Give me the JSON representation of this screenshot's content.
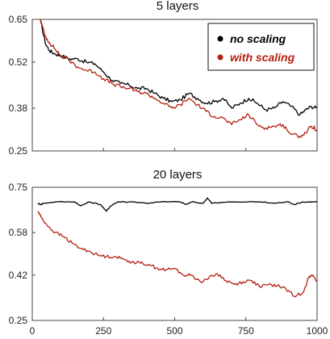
{
  "colors": {
    "no_scaling": "#000000",
    "with_scaling": "#b41f0e"
  },
  "x_tick_labels": [
    "0",
    "250",
    "500",
    "750",
    "1000"
  ],
  "chart_data": [
    {
      "type": "line",
      "title": "5 layers",
      "xlabel": "",
      "ylabel": "",
      "xlim": [
        0,
        1000
      ],
      "ylim": [
        0.25,
        0.65
      ],
      "yticks": [
        0.25,
        0.38,
        0.52,
        0.65
      ],
      "ytick_labels": [
        "0.25",
        "0.38",
        "0.52",
        "0.65"
      ],
      "xticks": [
        0,
        250,
        500,
        750,
        1000
      ],
      "grid": false,
      "legend": {
        "placement": "top-right",
        "entries": [
          "no scaling",
          "with scaling"
        ]
      },
      "series": [
        {
          "name": "no scaling",
          "color": "#000000",
          "points": [
            [
              28,
              0.65
            ],
            [
              45,
              0.58
            ],
            [
              60,
              0.555
            ],
            [
              80,
              0.545
            ],
            [
              100,
              0.54
            ],
            [
              130,
              0.53
            ],
            [
              160,
              0.53
            ],
            [
              190,
              0.52
            ],
            [
              220,
              0.515
            ],
            [
              250,
              0.49
            ],
            [
              280,
              0.465
            ],
            [
              310,
              0.455
            ],
            [
              340,
              0.45
            ],
            [
              370,
              0.44
            ],
            [
              400,
              0.44
            ],
            [
              430,
              0.425
            ],
            [
              460,
              0.41
            ],
            [
              490,
              0.4
            ],
            [
              520,
              0.405
            ],
            [
              550,
              0.425
            ],
            [
              580,
              0.41
            ],
            [
              610,
              0.395
            ],
            [
              640,
              0.4
            ],
            [
              670,
              0.41
            ],
            [
              700,
              0.38
            ],
            [
              730,
              0.395
            ],
            [
              760,
              0.41
            ],
            [
              790,
              0.395
            ],
            [
              820,
              0.375
            ],
            [
              850,
              0.38
            ],
            [
              880,
              0.4
            ],
            [
              910,
              0.385
            ],
            [
              940,
              0.36
            ],
            [
              960,
              0.375
            ],
            [
              980,
              0.385
            ],
            [
              1000,
              0.38
            ]
          ]
        },
        {
          "name": "with scaling",
          "color": "#b41f0e",
          "points": [
            [
              28,
              0.65
            ],
            [
              45,
              0.6
            ],
            [
              60,
              0.58
            ],
            [
              80,
              0.56
            ],
            [
              100,
              0.54
            ],
            [
              130,
              0.525
            ],
            [
              160,
              0.505
            ],
            [
              190,
              0.495
            ],
            [
              220,
              0.49
            ],
            [
              250,
              0.47
            ],
            [
              280,
              0.455
            ],
            [
              310,
              0.445
            ],
            [
              340,
              0.44
            ],
            [
              370,
              0.43
            ],
            [
              400,
              0.425
            ],
            [
              430,
              0.41
            ],
            [
              460,
              0.395
            ],
            [
              490,
              0.38
            ],
            [
              520,
              0.39
            ],
            [
              550,
              0.41
            ],
            [
              580,
              0.39
            ],
            [
              610,
              0.37
            ],
            [
              640,
              0.355
            ],
            [
              670,
              0.35
            ],
            [
              700,
              0.33
            ],
            [
              730,
              0.345
            ],
            [
              760,
              0.36
            ],
            [
              790,
              0.33
            ],
            [
              820,
              0.32
            ],
            [
              850,
              0.325
            ],
            [
              880,
              0.33
            ],
            [
              910,
              0.3
            ],
            [
              940,
              0.295
            ],
            [
              960,
              0.305
            ],
            [
              980,
              0.325
            ],
            [
              1000,
              0.315
            ]
          ]
        }
      ]
    },
    {
      "type": "line",
      "title": "20 layers",
      "xlabel": "",
      "ylabel": "",
      "xlim": [
        0,
        1000
      ],
      "ylim": [
        0.25,
        0.75
      ],
      "yticks": [
        0.25,
        0.42,
        0.58,
        0.75
      ],
      "ytick_labels": [
        "0.25",
        "0.42",
        "0.58",
        "0.75"
      ],
      "xticks": [
        0,
        250,
        500,
        750,
        1000
      ],
      "grid": false,
      "series": [
        {
          "name": "no scaling",
          "color": "#000000",
          "points": [
            [
              20,
              0.69
            ],
            [
              30,
              0.685
            ],
            [
              40,
              0.69
            ],
            [
              80,
              0.695
            ],
            [
              150,
              0.695
            ],
            [
              170,
              0.68
            ],
            [
              200,
              0.695
            ],
            [
              240,
              0.685
            ],
            [
              260,
              0.66
            ],
            [
              275,
              0.68
            ],
            [
              300,
              0.695
            ],
            [
              360,
              0.695
            ],
            [
              400,
              0.69
            ],
            [
              450,
              0.695
            ],
            [
              520,
              0.695
            ],
            [
              540,
              0.685
            ],
            [
              560,
              0.695
            ],
            [
              600,
              0.69
            ],
            [
              615,
              0.71
            ],
            [
              630,
              0.69
            ],
            [
              700,
              0.695
            ],
            [
              800,
              0.695
            ],
            [
              850,
              0.69
            ],
            [
              900,
              0.695
            ],
            [
              920,
              0.685
            ],
            [
              950,
              0.695
            ],
            [
              1000,
              0.695
            ]
          ]
        },
        {
          "name": "with scaling",
          "color": "#b41f0e",
          "points": [
            [
              20,
              0.66
            ],
            [
              30,
              0.64
            ],
            [
              50,
              0.61
            ],
            [
              80,
              0.58
            ],
            [
              110,
              0.565
            ],
            [
              140,
              0.54
            ],
            [
              170,
              0.52
            ],
            [
              200,
              0.51
            ],
            [
              230,
              0.495
            ],
            [
              260,
              0.49
            ],
            [
              290,
              0.49
            ],
            [
              320,
              0.48
            ],
            [
              350,
              0.47
            ],
            [
              380,
              0.465
            ],
            [
              410,
              0.46
            ],
            [
              440,
              0.445
            ],
            [
              470,
              0.44
            ],
            [
              500,
              0.445
            ],
            [
              530,
              0.42
            ],
            [
              560,
              0.42
            ],
            [
              590,
              0.395
            ],
            [
              620,
              0.41
            ],
            [
              650,
              0.425
            ],
            [
              680,
              0.4
            ],
            [
              710,
              0.385
            ],
            [
              740,
              0.395
            ],
            [
              770,
              0.4
            ],
            [
              800,
              0.375
            ],
            [
              830,
              0.385
            ],
            [
              860,
              0.38
            ],
            [
              890,
              0.37
            ],
            [
              920,
              0.34
            ],
            [
              950,
              0.355
            ],
            [
              970,
              0.41
            ],
            [
              985,
              0.42
            ],
            [
              1000,
              0.395
            ]
          ]
        }
      ]
    }
  ]
}
